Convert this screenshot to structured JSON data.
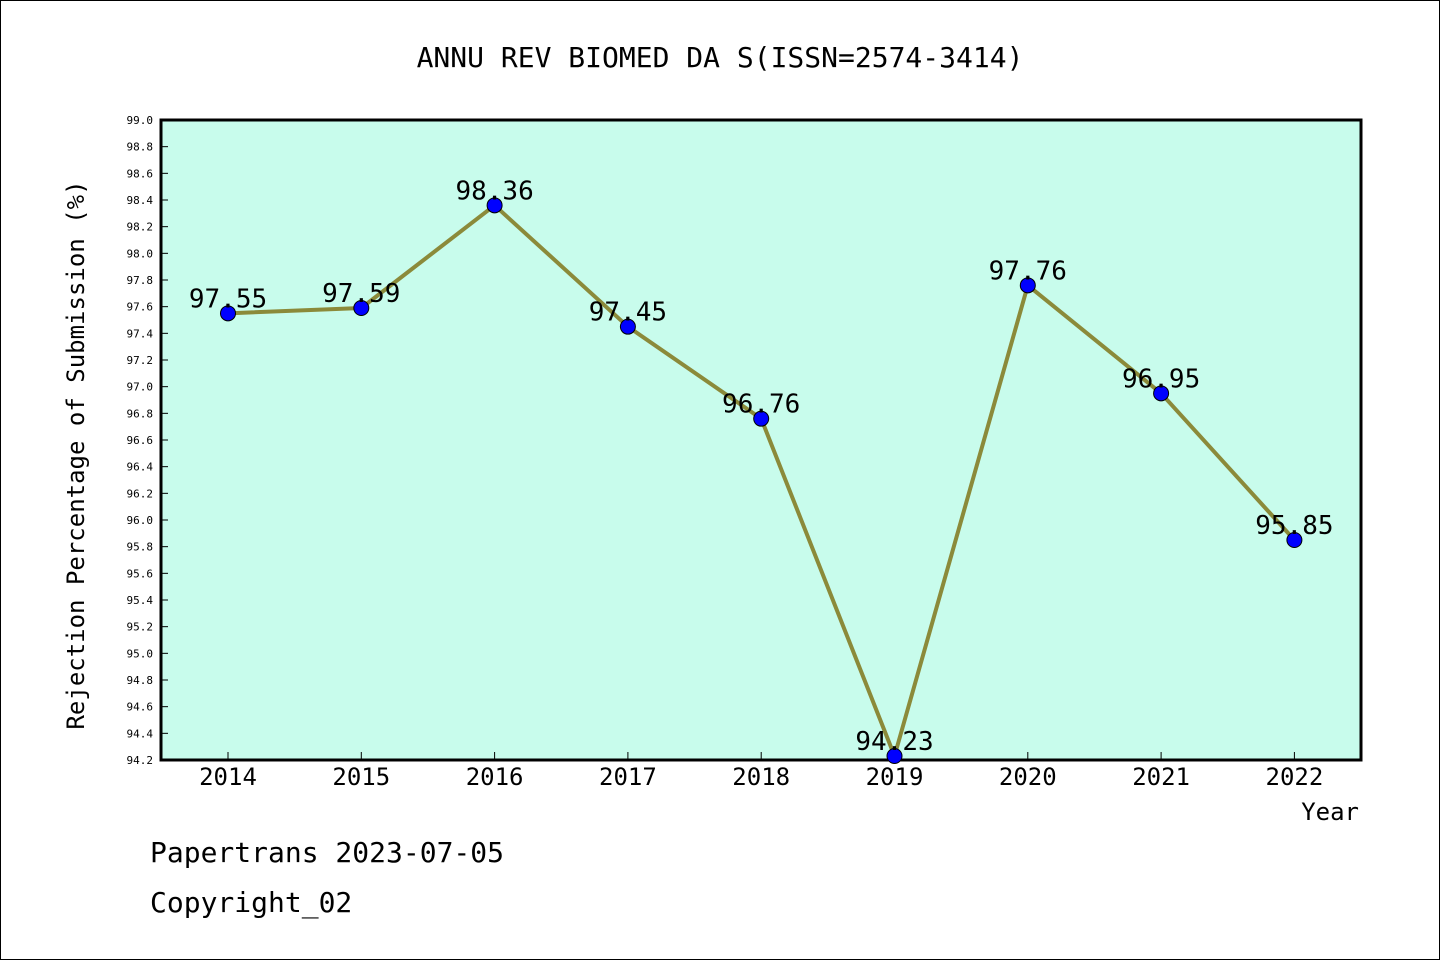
{
  "chart_data": {
    "type": "line",
    "title": "ANNU REV BIOMED DA S(ISSN=2574-3414)",
    "xlabel": "Year",
    "ylabel": "Rejection Percentage of Submission (%)",
    "categories": [
      "2014",
      "2015",
      "2016",
      "2017",
      "2018",
      "2019",
      "2020",
      "2021",
      "2022"
    ],
    "values": [
      97.55,
      97.59,
      98.36,
      97.45,
      96.76,
      94.23,
      97.76,
      96.95,
      95.85
    ],
    "data_labels": [
      "97.55",
      "97.59",
      "98.36",
      "97.45",
      "96.76",
      "94.23",
      "97.76",
      "96.95",
      "95.85"
    ],
    "ylim": [
      94.2,
      99.0
    ],
    "yticks": [
      "94.2",
      "94.4",
      "94.6",
      "94.8",
      "95.0",
      "95.2",
      "95.4",
      "95.6",
      "95.8",
      "96.0",
      "96.2",
      "96.4",
      "96.6",
      "96.8",
      "97.0",
      "97.2",
      "97.4",
      "97.6",
      "97.8",
      "98.0",
      "98.2",
      "98.4",
      "98.6",
      "98.8",
      "99.0"
    ],
    "grid": false,
    "colors": {
      "plot_background": "#c8fcec",
      "line": "#8b8a3a",
      "marker": "#0000ff"
    }
  },
  "footer": {
    "line1": "Papertrans 2023-07-05",
    "line2": "Copyright_02"
  }
}
